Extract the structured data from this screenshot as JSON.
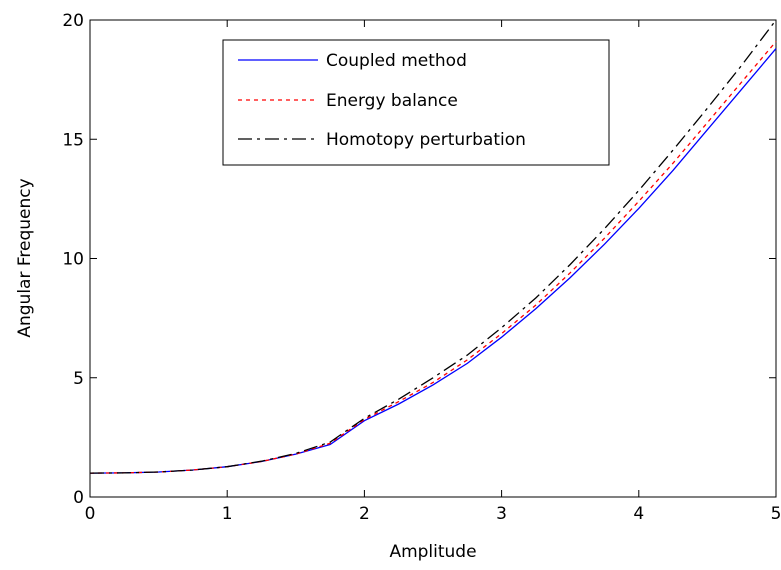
{
  "chart_data": {
    "type": "line",
    "title": "",
    "xlabel": "Amplitude",
    "ylabel": "Angular Frequency",
    "xlim": [
      0,
      5
    ],
    "ylim": [
      0,
      20
    ],
    "xticks": [
      0,
      1,
      2,
      3,
      4,
      5
    ],
    "xtick_labels": [
      "0",
      "1",
      "2",
      "3",
      "4",
      "5"
    ],
    "yticks": [
      0,
      5,
      10,
      15,
      20
    ],
    "ytick_labels": [
      "0",
      "5",
      "10",
      "15",
      "20"
    ],
    "grid": false,
    "legend_position": "top-center",
    "x": [
      0,
      0.25,
      0.5,
      0.75,
      1,
      1.25,
      1.5,
      1.75,
      2,
      2.25,
      2.5,
      2.75,
      3,
      3.25,
      3.5,
      3.75,
      4,
      4.25,
      4.5,
      4.75,
      5
    ],
    "series": [
      {
        "name": "Coupled method",
        "color": "#0000ff",
        "dash": "solid",
        "values": [
          1.0,
          1.01,
          1.05,
          1.13,
          1.27,
          1.49,
          1.8,
          2.2,
          3.2,
          3.9,
          4.7,
          5.6,
          6.7,
          7.9,
          9.2,
          10.6,
          12.1,
          13.7,
          15.4,
          17.1,
          18.8
        ]
      },
      {
        "name": "Energy balance",
        "color": "#ff0000",
        "dash": "dotted",
        "values": [
          1.0,
          1.01,
          1.05,
          1.13,
          1.27,
          1.49,
          1.8,
          2.25,
          3.25,
          4.0,
          4.8,
          5.75,
          6.85,
          8.05,
          9.4,
          10.85,
          12.4,
          14.0,
          15.7,
          17.4,
          19.1
        ]
      },
      {
        "name": "Homotopy perturbation",
        "color": "#000000",
        "dash": "dashdot",
        "values": [
          1.0,
          1.01,
          1.05,
          1.13,
          1.27,
          1.5,
          1.83,
          2.3,
          3.3,
          4.1,
          5.0,
          5.95,
          7.1,
          8.35,
          9.75,
          11.25,
          12.85,
          14.55,
          16.3,
          18.1,
          20.0
        ]
      }
    ]
  }
}
